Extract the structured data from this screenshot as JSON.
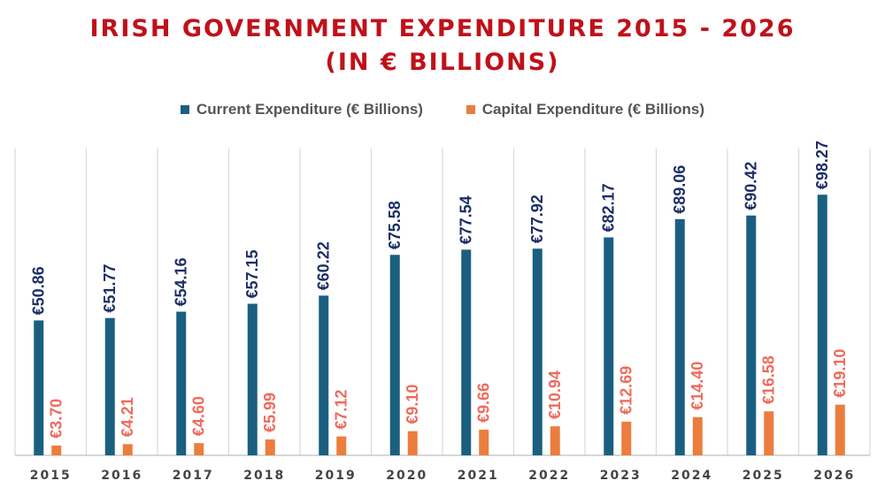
{
  "title_line1": "IRISH GOVERNMENT EXPENDITURE 2015 - 2026",
  "title_line2": "(IN € BILLIONS)",
  "colors": {
    "title": "#c0111a",
    "current": "#1b5f80",
    "capital": "#ec7d3e",
    "current_label": "#1c2f66",
    "capital_label": "#ef6a5c",
    "grid": "#d9d9d9",
    "tick": "#444444"
  },
  "chart_data": {
    "type": "bar",
    "categories": [
      "2015",
      "2016",
      "2017",
      "2018",
      "2019",
      "2020",
      "2021",
      "2022",
      "2023",
      "2024",
      "2025",
      "2026"
    ],
    "series": [
      {
        "name": "Current Expenditure (€ Billions)",
        "values": [
          50.86,
          51.77,
          54.16,
          57.15,
          60.22,
          75.58,
          77.54,
          77.92,
          82.17,
          89.06,
          90.42,
          98.27
        ],
        "labels": [
          "€50.86",
          "€51.77",
          "€54.16",
          "€57.15",
          "€60.22",
          "€75.58",
          "€77.54",
          "€77.92",
          "€82.17",
          "€89.06",
          "€90.42",
          "€98.27"
        ]
      },
      {
        "name": "Capital Expenditure (€ Billions)",
        "values": [
          3.7,
          4.21,
          4.6,
          5.99,
          7.12,
          9.1,
          9.66,
          10.94,
          12.69,
          14.4,
          16.58,
          19.1
        ],
        "labels": [
          "€3.70",
          "€4.21",
          "€4.60",
          "€5.99",
          "€7.12",
          "€9.10",
          "€9.66",
          "€10.94",
          "€12.69",
          "€14.40",
          "€16.58",
          "€19.10"
        ]
      }
    ],
    "ylim": [
      0,
      115
    ],
    "grid": "vertical category dividers",
    "legend_position": "top",
    "data_label_orientation": "rotated vertical"
  }
}
